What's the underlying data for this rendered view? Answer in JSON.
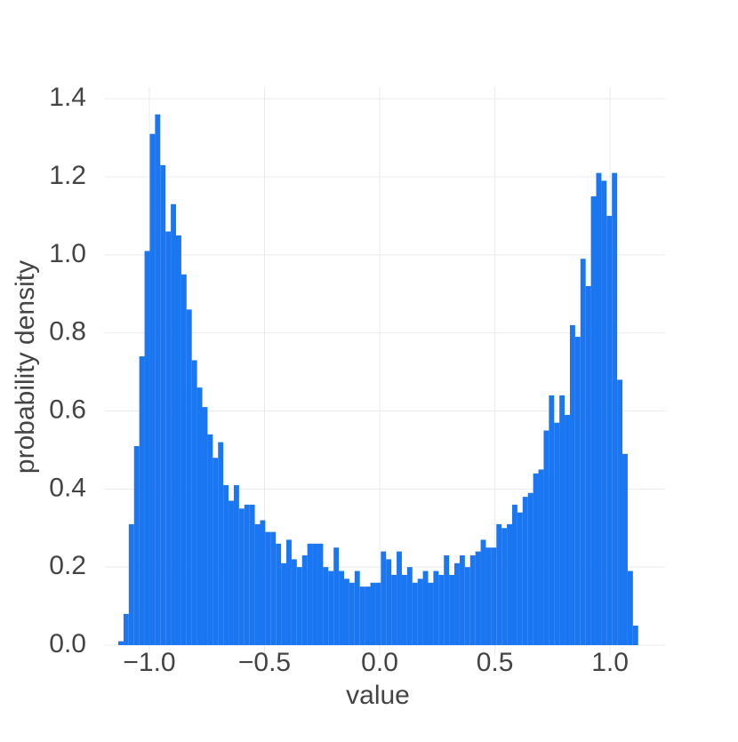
{
  "chart_data": {
    "type": "histogram",
    "x_label": "value",
    "y_label": "probability density",
    "color": "#1b76f2",
    "grid": true,
    "bins": [
      -1.135,
      -1.1122,
      -1.0894,
      -1.0666,
      -1.0438,
      -1.021,
      -0.9982,
      -0.9754,
      -0.9526,
      -0.9298,
      -0.907,
      -0.8842,
      -0.8614,
      -0.8386,
      -0.8158,
      -0.793,
      -0.7702,
      -0.7474,
      -0.7246,
      -0.7018,
      -0.679,
      -0.6562,
      -0.6334,
      -0.6106,
      -0.5878,
      -0.565,
      -0.5422,
      -0.5194,
      -0.4966,
      -0.4738,
      -0.451,
      -0.4282,
      -0.4054,
      -0.3826,
      -0.3598,
      -0.337,
      -0.3142,
      -0.2914,
      -0.2686,
      -0.2458,
      -0.223,
      -0.2002,
      -0.1774,
      -0.1546,
      -0.1318,
      -0.109,
      -0.0862,
      -0.0634,
      -0.0406,
      -0.0178,
      0.005,
      0.0278,
      0.0506,
      0.0734,
      0.0962,
      0.119,
      0.1418,
      0.1646,
      0.1874,
      0.2102,
      0.233,
      0.2558,
      0.2786,
      0.3014,
      0.3242,
      0.347,
      0.3698,
      0.3926,
      0.4154,
      0.4382,
      0.461,
      0.4838,
      0.5066,
      0.5294,
      0.5522,
      0.575,
      0.5978,
      0.6206,
      0.6434,
      0.6662,
      0.689,
      0.7118,
      0.7346,
      0.7574,
      0.7802,
      0.803,
      0.8258,
      0.8486,
      0.8714,
      0.8942,
      0.917,
      0.9398,
      0.9626,
      0.9854,
      1.0082,
      1.031,
      1.0538,
      1.0766,
      1.0994,
      1.1222
    ],
    "values": [
      0.01,
      0.08,
      0.31,
      0.51,
      0.74,
      1.01,
      1.31,
      1.36,
      1.23,
      1.06,
      1.13,
      1.05,
      0.95,
      0.86,
      0.73,
      0.66,
      0.61,
      0.54,
      0.48,
      0.52,
      0.41,
      0.37,
      0.41,
      0.35,
      0.36,
      0.36,
      0.31,
      0.32,
      0.29,
      0.29,
      0.26,
      0.21,
      0.27,
      0.22,
      0.2,
      0.23,
      0.26,
      0.26,
      0.26,
      0.2,
      0.19,
      0.25,
      0.19,
      0.17,
      0.16,
      0.19,
      0.15,
      0.15,
      0.16,
      0.16,
      0.24,
      0.22,
      0.18,
      0.24,
      0.18,
      0.2,
      0.16,
      0.17,
      0.19,
      0.16,
      0.19,
      0.18,
      0.23,
      0.18,
      0.21,
      0.23,
      0.2,
      0.23,
      0.24,
      0.27,
      0.25,
      0.25,
      0.31,
      0.3,
      0.31,
      0.36,
      0.34,
      0.38,
      0.39,
      0.44,
      0.45,
      0.55,
      0.64,
      0.57,
      0.64,
      0.59,
      0.82,
      0.79,
      0.99,
      0.92,
      1.15,
      1.21,
      1.19,
      1.1,
      1.21,
      0.68,
      0.49,
      0.19,
      0.05
    ],
    "xlim": [
      -1.193,
      1.239
    ],
    "xticks": [
      {
        "value": -1,
        "label": "−1.0"
      },
      {
        "value": -0.5,
        "label": "−0.5"
      },
      {
        "value": 0,
        "label": "0.0"
      },
      0.5,
      {
        "value": 1,
        "label": "1.0"
      }
    ],
    "ylim": [
      0,
      1.43
    ],
    "yticks": [
      {
        "value": 0,
        "label": "0.0"
      },
      0.2,
      0.4,
      0.6,
      0.8,
      {
        "value": 1,
        "label": "1.0"
      },
      1.2,
      1.4
    ]
  }
}
